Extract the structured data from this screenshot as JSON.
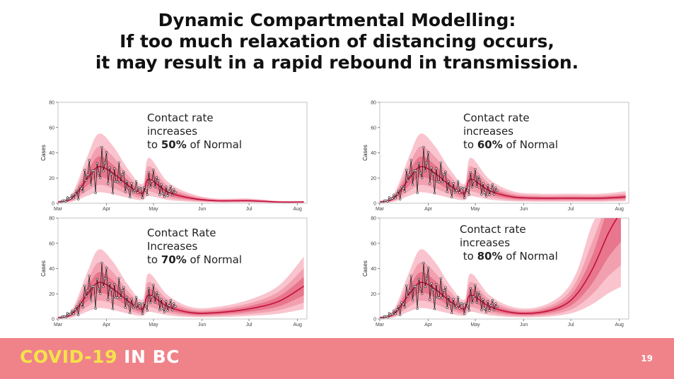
{
  "slide": {
    "title_lines": [
      "Dynamic Compartmental Modelling:",
      "If too much relaxation of distancing occurs,",
      "it may result in a rapid rebound in transmission."
    ],
    "footer": {
      "brand_part1": "COVID-19",
      "brand_part2": " IN BC",
      "page_number": "19"
    }
  },
  "colors": {
    "band_outer": "#f9c4ce",
    "band_mid": "#f2a0b0",
    "band_inner": "#e8768c",
    "line": "#c2103f",
    "observed": "#222222",
    "footer": "#f0838a"
  },
  "chart_data": [
    {
      "type": "line",
      "ylabel": "Cases",
      "ylim": [
        0,
        80
      ],
      "yticks": [
        "0",
        "20",
        "40",
        "60",
        "80"
      ],
      "xticks": [
        "Mar",
        "Apr",
        "May",
        "Jun",
        "Jul",
        "Aug"
      ],
      "annotation": {
        "line1": "Contact rate",
        "line2": "increases",
        "pre": "to ",
        "bold": "50%",
        "post": " of Normal"
      },
      "x": [
        "Mar 1",
        "Mar 10",
        "Mar 20",
        "Mar 27",
        "Apr 5",
        "Apr 15",
        "Apr 24",
        "Apr 28",
        "May 10",
        "May 25",
        "Jun 10",
        "Jul 1",
        "Jul 20",
        "Aug 5"
      ],
      "series": [
        {
          "values": [
            1,
            4,
            20,
            29,
            24,
            14,
            8,
            19,
            9,
            4,
            2,
            2,
            1,
            1
          ]
        }
      ]
    },
    {
      "type": "line",
      "ylabel": "Cases",
      "ylim": [
        0,
        80
      ],
      "yticks": [
        "0",
        "20",
        "40",
        "60",
        "80"
      ],
      "xticks": [
        "Mar",
        "Apr",
        "May",
        "Jun",
        "Jul",
        "Aug"
      ],
      "annotation": {
        "line1": "Contact rate",
        "line2": "increases",
        "pre": "to ",
        "bold": "60%",
        "post": " of Normal"
      },
      "x": [
        "Mar 1",
        "Mar 10",
        "Mar 20",
        "Mar 27",
        "Apr 5",
        "Apr 15",
        "Apr 24",
        "Apr 28",
        "May 10",
        "May 25",
        "Jun 10",
        "Jul 1",
        "Jul 20",
        "Aug 5"
      ],
      "series": [
        {
          "values": [
            1,
            4,
            20,
            29,
            24,
            14,
            8,
            19,
            10,
            5,
            4,
            4,
            4,
            5
          ]
        }
      ]
    },
    {
      "type": "line",
      "ylabel": "Cases",
      "ylim": [
        0,
        80
      ],
      "yticks": [
        "0",
        "20",
        "40",
        "60",
        "80"
      ],
      "xticks": [
        "Mar",
        "Apr",
        "May",
        "Jun",
        "Jul",
        "Aug"
      ],
      "annotation": {
        "line1": "Contact Rate",
        "line2": "Increases",
        "pre": "to ",
        "bold": "70%",
        "post": " of Normal"
      },
      "x": [
        "Mar 1",
        "Mar 10",
        "Mar 20",
        "Mar 27",
        "Apr 5",
        "Apr 15",
        "Apr 24",
        "Apr 28",
        "May 10",
        "May 25",
        "Jun 10",
        "Jul 1",
        "Jul 20",
        "Aug 5"
      ],
      "series": [
        {
          "values": [
            1,
            4,
            20,
            29,
            24,
            14,
            8,
            19,
            10,
            5,
            5,
            8,
            14,
            26
          ]
        }
      ]
    },
    {
      "type": "line",
      "ylabel": "Cases",
      "ylim": [
        0,
        80
      ],
      "yticks": [
        "0",
        "20",
        "40",
        "60",
        "80"
      ],
      "xticks": [
        "Mar",
        "Apr",
        "May",
        "Jun",
        "Jul",
        "Aug"
      ],
      "annotation": {
        "line1": "Contact rate",
        "line2": "increases",
        "pre": " to ",
        "bold": "80%",
        "post": " of Normal"
      },
      "x": [
        "Mar 1",
        "Mar 10",
        "Mar 20",
        "Mar 27",
        "Apr 5",
        "Apr 15",
        "Apr 24",
        "Apr 28",
        "May 10",
        "May 25",
        "Jun 10",
        "Jun 25",
        "Jul 5",
        "Jul 15",
        "Jul 25",
        "Aug 2"
      ],
      "series": [
        {
          "values": [
            1,
            4,
            20,
            29,
            24,
            14,
            8,
            19,
            10,
            5,
            5,
            10,
            20,
            40,
            68,
            85
          ]
        }
      ]
    }
  ]
}
